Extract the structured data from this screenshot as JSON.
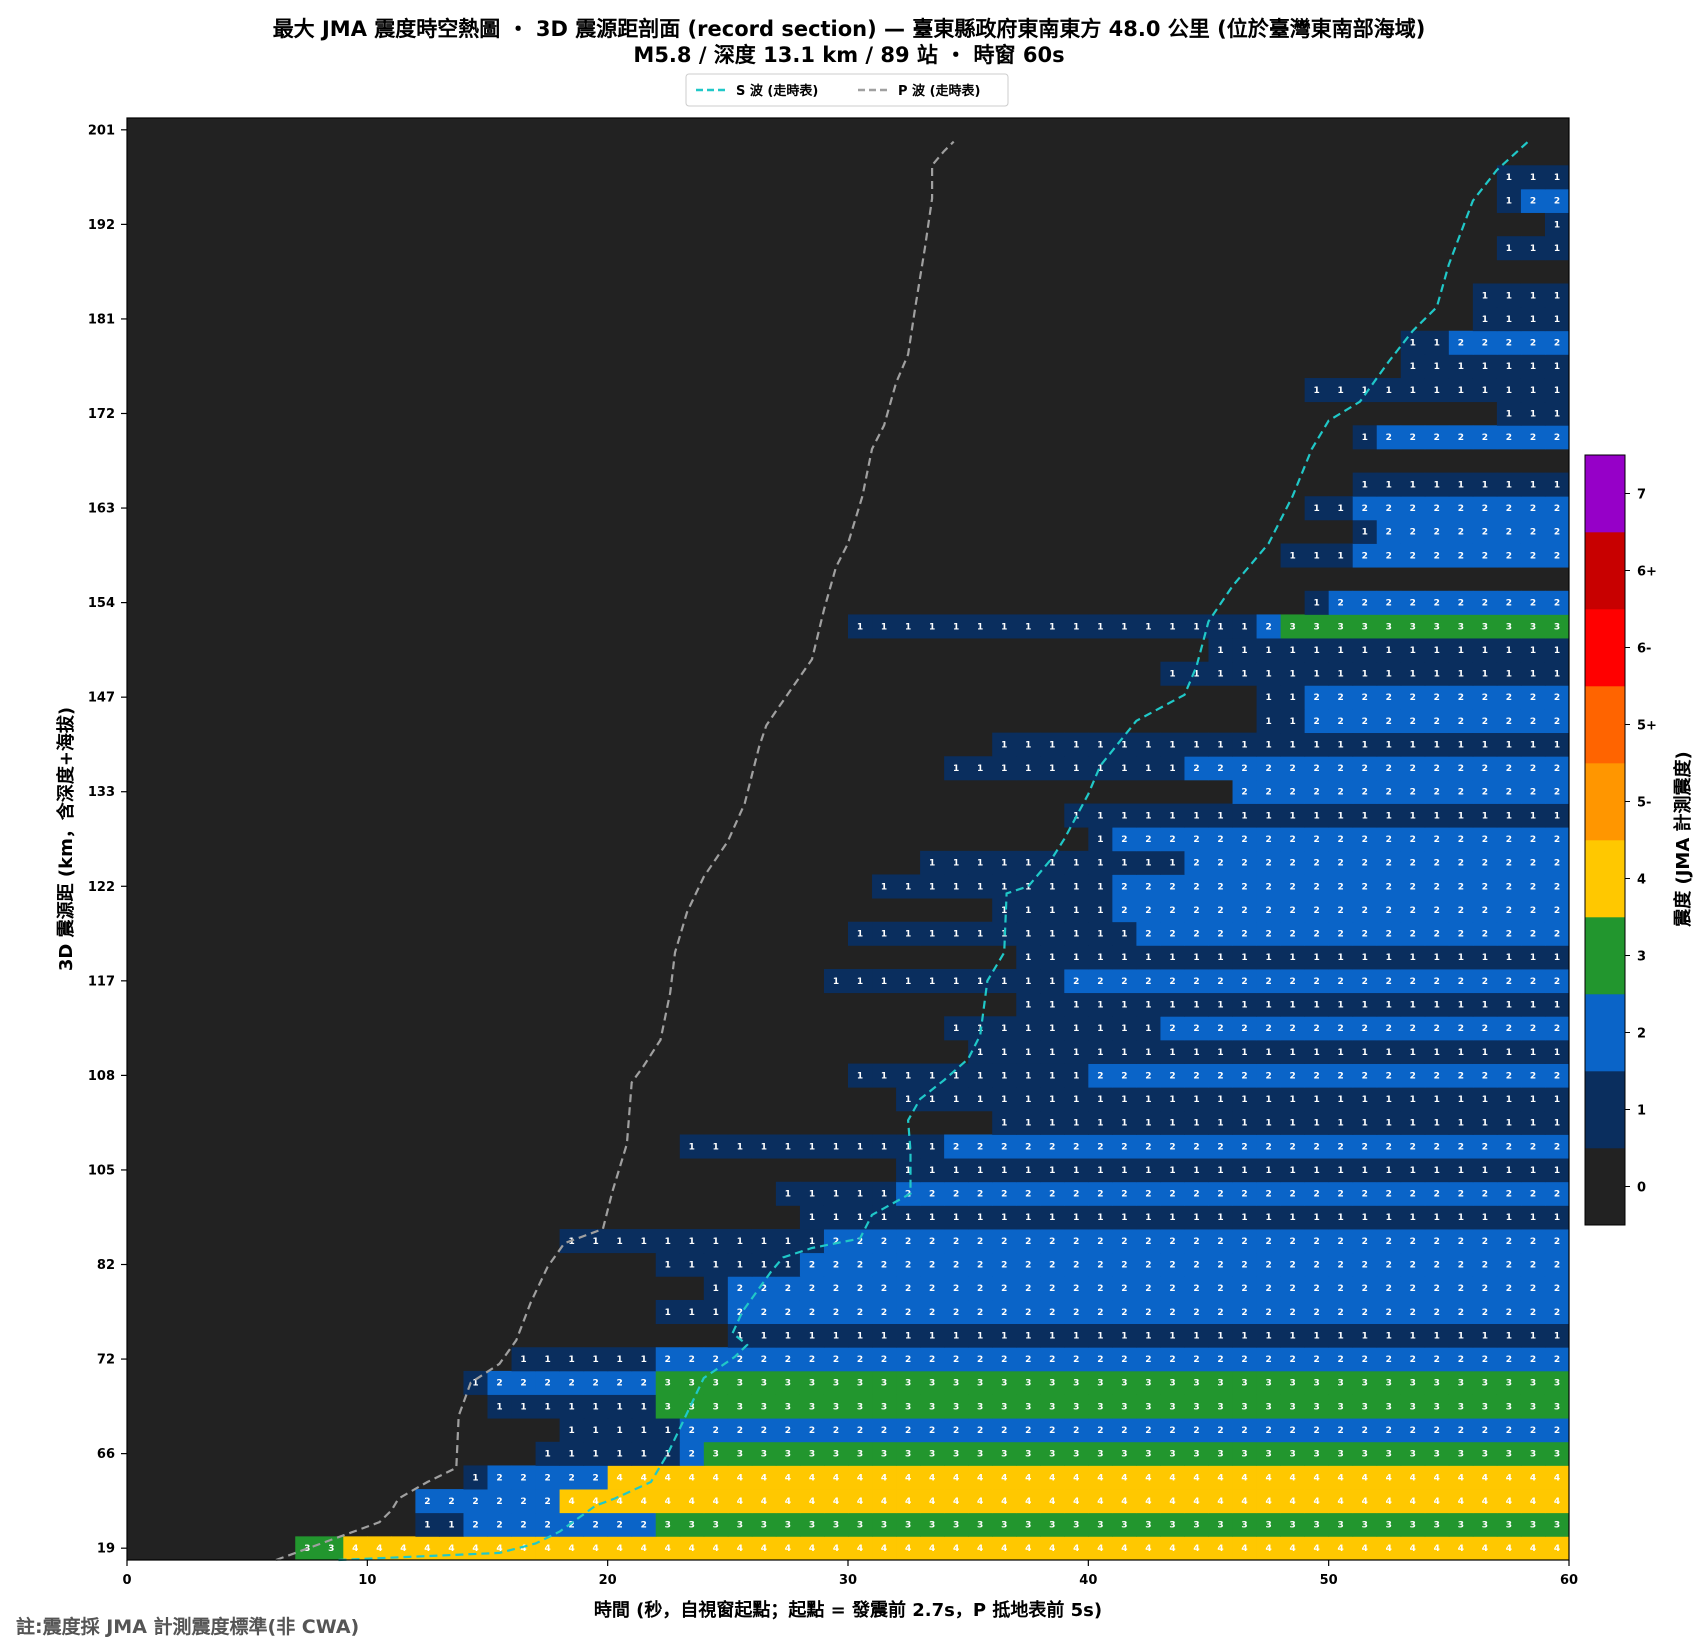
{
  "chart_data": {
    "type": "heatmap",
    "title": "最大 JMA 震度時空熱圖 ・ 3D 震源距剖面 (record section) — 臺東縣政府東南東方  48.0  公里 (位於臺灣東南部海域)",
    "subtitle": "M5.8 / 深度 13.1 km / 89 站 ・ 時窗 60s",
    "xlabel": "時間 (秒，自視窗起點；起點 = 發震前 2.7s，P 抵地表前 5s)",
    "ylabel": "3D 震源距 (km，含深度+海拔)",
    "xlim": [
      0,
      60
    ],
    "time_bin_s": 1,
    "x_ticks": [
      0,
      10,
      20,
      30,
      40,
      50,
      60
    ],
    "y_ticks": [
      {
        "row": 0,
        "label": "19"
      },
      {
        "row": 4,
        "label": "66"
      },
      {
        "row": 8,
        "label": "72"
      },
      {
        "row": 12,
        "label": "82"
      },
      {
        "row": 16,
        "label": "105"
      },
      {
        "row": 20,
        "label": "108"
      },
      {
        "row": 24,
        "label": "117"
      },
      {
        "row": 28,
        "label": "122"
      },
      {
        "row": 32,
        "label": "133"
      },
      {
        "row": 36,
        "label": "147"
      },
      {
        "row": 40,
        "label": "154"
      },
      {
        "row": 44,
        "label": "163"
      },
      {
        "row": 48,
        "label": "172"
      },
      {
        "row": 52,
        "label": "181"
      },
      {
        "row": 56,
        "label": "192"
      },
      {
        "row": 60,
        "label": "201"
      }
    ],
    "legend": {
      "placement": "top-center",
      "entries": [
        {
          "name": "S 波 (走時表)",
          "color": "#20c8c8",
          "style": "dashed"
        },
        {
          "name": "P 波 (走時表)",
          "color": "#a0a0a0",
          "style": "dashed"
        }
      ]
    },
    "colorbar": {
      "label": "震度 (JMA 計測震度)",
      "levels": [
        {
          "label": "0",
          "color": "#222222"
        },
        {
          "label": "1",
          "color": "#0a2e5e"
        },
        {
          "label": "2",
          "color": "#0a64c8"
        },
        {
          "label": "3",
          "color": "#22962e"
        },
        {
          "label": "4",
          "color": "#ffc800"
        },
        {
          "label": "5-",
          "color": "#ff9600"
        },
        {
          "label": "5+",
          "color": "#ff6400"
        },
        {
          "label": "6-",
          "color": "#ff0000"
        },
        {
          "label": "6+",
          "color": "#c80000"
        },
        {
          "label": "7",
          "color": "#9600c8"
        }
      ]
    },
    "rows_note": "Each station row lists runs [start_second, intensity_level]; a run lasts until the next run's start or until 60 s. Rows are ordered bottom (row 0) to top (row 60).",
    "rows": [
      [
        [
          7,
          3
        ],
        [
          9,
          4
        ]
      ],
      [
        [
          12,
          1
        ],
        [
          14,
          2
        ],
        [
          22,
          3
        ]
      ],
      [
        [
          12,
          2
        ],
        [
          18,
          4
        ]
      ],
      [
        [
          14,
          1
        ],
        [
          15,
          2
        ],
        [
          20,
          4
        ]
      ],
      [
        [
          17,
          1
        ],
        [
          23,
          2
        ],
        [
          24,
          3
        ]
      ],
      [
        [
          18,
          1
        ],
        [
          23,
          2
        ]
      ],
      [
        [
          15,
          1
        ],
        [
          22,
          3
        ]
      ],
      [
        [
          14,
          1
        ],
        [
          15,
          2
        ],
        [
          22,
          3
        ]
      ],
      [
        [
          16,
          1
        ],
        [
          22,
          2
        ]
      ],
      [
        [
          25,
          1
        ]
      ],
      [
        [
          22,
          1
        ],
        [
          25,
          2
        ]
      ],
      [
        [
          24,
          1
        ],
        [
          25,
          2
        ]
      ],
      [
        [
          22,
          1
        ],
        [
          28,
          2
        ]
      ],
      [
        [
          18,
          1
        ],
        [
          29,
          2
        ]
      ],
      [
        [
          28,
          1
        ]
      ],
      [
        [
          27,
          1
        ],
        [
          32,
          2
        ]
      ],
      [
        [
          32,
          1
        ]
      ],
      [
        [
          23,
          1
        ],
        [
          34,
          2
        ]
      ],
      [
        [
          36,
          1
        ]
      ],
      [
        [
          32,
          1
        ]
      ],
      [
        [
          30,
          1
        ],
        [
          40,
          2
        ]
      ],
      [
        [
          35,
          1
        ]
      ],
      [
        [
          34,
          1
        ],
        [
          43,
          2
        ]
      ],
      [
        [
          37,
          1
        ]
      ],
      [
        [
          29,
          1
        ],
        [
          39,
          2
        ]
      ],
      [
        [
          37,
          1
        ]
      ],
      [
        [
          30,
          1
        ],
        [
          42,
          2
        ]
      ],
      [
        [
          36,
          1
        ],
        [
          41,
          2
        ]
      ],
      [
        [
          31,
          1
        ],
        [
          41,
          2
        ]
      ],
      [
        [
          33,
          1
        ],
        [
          44,
          2
        ]
      ],
      [
        [
          40,
          1
        ],
        [
          41,
          2
        ]
      ],
      [
        [
          39,
          1
        ]
      ],
      [
        [
          46,
          2
        ]
      ],
      [
        [
          34,
          1
        ],
        [
          44,
          2
        ]
      ],
      [
        [
          36,
          1
        ]
      ],
      [
        [
          47,
          1
        ],
        [
          49,
          2
        ]
      ],
      [
        [
          47,
          1
        ],
        [
          49,
          2
        ]
      ],
      [
        [
          43,
          1
        ]
      ],
      [
        [
          45,
          1
        ]
      ],
      [
        [
          30,
          1
        ],
        [
          47,
          2
        ],
        [
          48,
          3
        ]
      ],
      [
        [
          49,
          1
        ],
        [
          50,
          2
        ]
      ],
      null,
      [
        [
          48,
          1
        ],
        [
          51,
          2
        ]
      ],
      [
        [
          51,
          1
        ],
        [
          52,
          2
        ]
      ],
      [
        [
          49,
          1
        ],
        [
          51,
          2
        ]
      ],
      [
        [
          51,
          1
        ]
      ],
      null,
      [
        [
          51,
          1
        ],
        [
          52,
          2
        ]
      ],
      [
        [
          57,
          1
        ]
      ],
      [
        [
          49,
          1
        ]
      ],
      [
        [
          53,
          1
        ]
      ],
      [
        [
          53,
          1
        ],
        [
          55,
          2
        ]
      ],
      [
        [
          56,
          1
        ]
      ],
      [
        [
          56,
          1
        ]
      ],
      null,
      [
        [
          57,
          1
        ]
      ],
      [
        [
          59,
          1
        ]
      ],
      [
        [
          57,
          1
        ],
        [
          58,
          2
        ]
      ],
      [
        [
          57,
          1
        ]
      ],
      null,
      null
    ],
    "s_wave_curve": [
      [
        8.8,
        0
      ],
      [
        15.5,
        0.3
      ],
      [
        17.0,
        0.7
      ],
      [
        18.0,
        1.2
      ],
      [
        19.5,
        2.3
      ],
      [
        20.3,
        2.6
      ],
      [
        21.8,
        3.3
      ],
      [
        22.5,
        4.5
      ],
      [
        24.0,
        7.7
      ],
      [
        25.3,
        8.6
      ],
      [
        25.8,
        9.1
      ],
      [
        25.2,
        9.6
      ],
      [
        25.6,
        10.5
      ],
      [
        26.8,
        12.2
      ],
      [
        27.3,
        12.8
      ],
      [
        28.5,
        13.2
      ],
      [
        30.5,
        13.6
      ],
      [
        31.0,
        14.6
      ],
      [
        32.6,
        15.5
      ],
      [
        32.6,
        17.3
      ],
      [
        32.5,
        18.6
      ],
      [
        33.0,
        19.5
      ],
      [
        34.0,
        20.3
      ],
      [
        35.0,
        21.2
      ],
      [
        35.5,
        22.2
      ],
      [
        35.8,
        24.5
      ],
      [
        36.5,
        25.7
      ],
      [
        36.6,
        28.2
      ],
      [
        37.5,
        28.5
      ],
      [
        38.5,
        29.7
      ],
      [
        39.0,
        30.5
      ],
      [
        40.0,
        32.4
      ],
      [
        40.5,
        33.6
      ],
      [
        42.0,
        35.5
      ],
      [
        44.0,
        36.6
      ],
      [
        44.5,
        37.8
      ],
      [
        45.0,
        39.7
      ],
      [
        46.0,
        41.2
      ],
      [
        47.5,
        43.0
      ],
      [
        48.5,
        45.0
      ],
      [
        49.3,
        47.0
      ],
      [
        50.0,
        48.2
      ],
      [
        51.3,
        49.0
      ],
      [
        52.5,
        50.7
      ],
      [
        53.5,
        52.0
      ],
      [
        54.5,
        53.0
      ],
      [
        55.0,
        54.8
      ],
      [
        56.0,
        57.5
      ],
      [
        57.0,
        58.8
      ],
      [
        58.3,
        60.0
      ]
    ],
    "p_wave_curve": [
      [
        6.2,
        0
      ],
      [
        10.5,
        1.6
      ],
      [
        11.0,
        2.1
      ],
      [
        11.3,
        2.6
      ],
      [
        12.5,
        3.3
      ],
      [
        13.7,
        3.9
      ],
      [
        13.8,
        6.1
      ],
      [
        14.3,
        7.5
      ],
      [
        15.5,
        8.3
      ],
      [
        16.2,
        9.3
      ],
      [
        16.8,
        10.9
      ],
      [
        17.5,
        12.4
      ],
      [
        18.2,
        13.4
      ],
      [
        19.8,
        14.0
      ],
      [
        20.2,
        15.6
      ],
      [
        20.8,
        17.6
      ],
      [
        21.0,
        20.2
      ],
      [
        21.5,
        20.9
      ],
      [
        22.2,
        22.0
      ],
      [
        22.6,
        24.0
      ],
      [
        22.8,
        25.7
      ],
      [
        23.3,
        27.4
      ],
      [
        24.0,
        28.9
      ],
      [
        25.0,
        30.4
      ],
      [
        25.7,
        32.0
      ],
      [
        26.3,
        34.4
      ],
      [
        26.6,
        35.3
      ],
      [
        27.0,
        35.9
      ],
      [
        28.5,
        38.1
      ],
      [
        29.0,
        40.2
      ],
      [
        29.5,
        42.0
      ],
      [
        30.0,
        43.0
      ],
      [
        30.6,
        45.0
      ],
      [
        31.0,
        47.0
      ],
      [
        31.5,
        48.0
      ],
      [
        32.0,
        49.8
      ],
      [
        32.5,
        51.0
      ],
      [
        32.8,
        53.0
      ],
      [
        33.2,
        55.5
      ],
      [
        33.5,
        57.6
      ],
      [
        33.5,
        59.0
      ],
      [
        34.0,
        59.6
      ],
      [
        34.4,
        60.0
      ]
    ]
  },
  "footnote": "註:震度採 JMA 計測震度標準(非 CWA)"
}
